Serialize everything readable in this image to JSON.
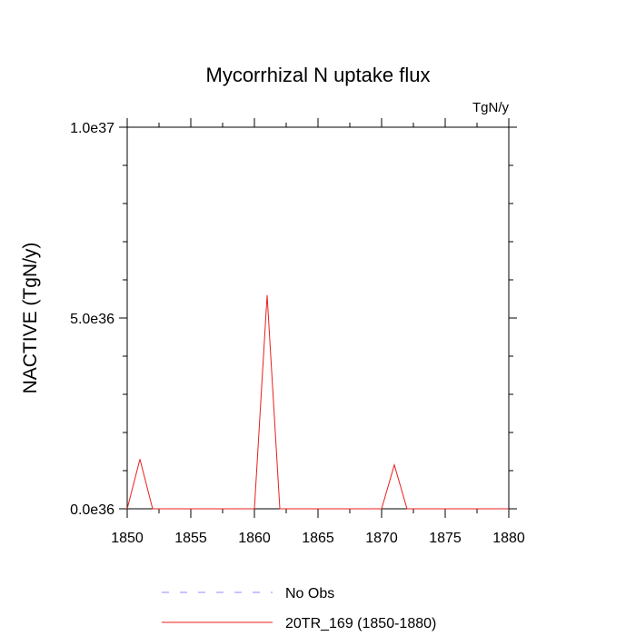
{
  "chart_data": {
    "type": "line",
    "title": "Mycorrhizal N uptake flux",
    "units_label": "TgN/y",
    "xlabel": "",
    "ylabel": "NACTIVE  (TgN/y)",
    "xlim": [
      1850,
      1880
    ],
    "ylim": [
      0,
      1e+37
    ],
    "x_ticks": [
      1850,
      1855,
      1860,
      1865,
      1870,
      1875,
      1880
    ],
    "x_tick_labels": [
      "1850",
      "1855",
      "1860",
      "1865",
      "1870",
      "1875",
      "1880"
    ],
    "y_ticks": [
      0,
      5e+36,
      1e+37
    ],
    "y_tick_labels": [
      "0.0e36",
      "5.0e36",
      "1.0e37"
    ],
    "grid": false,
    "legend_position": "bottom",
    "series": [
      {
        "name": "No Obs",
        "color": "#8c8cff",
        "style": "dashed",
        "x": [],
        "y": []
      },
      {
        "name": "20TR_169 (1850-1880)",
        "color": "#e8201c",
        "style": "solid",
        "x": [
          1850,
          1851,
          1852,
          1853,
          1854,
          1855,
          1856,
          1857,
          1858,
          1859,
          1860,
          1861,
          1862,
          1863,
          1864,
          1865,
          1866,
          1867,
          1868,
          1869,
          1870,
          1871,
          1872,
          1873,
          1874,
          1875,
          1876,
          1877,
          1878,
          1879,
          1880
        ],
        "y": [
          0,
          1.3e+36,
          0,
          0,
          0,
          0,
          0,
          0,
          0,
          0,
          0,
          5.6e+36,
          0,
          0,
          0,
          0,
          0,
          0,
          0,
          0,
          0,
          1.15e+36,
          0,
          0,
          0,
          0,
          0,
          0,
          0,
          0,
          0
        ]
      }
    ]
  }
}
